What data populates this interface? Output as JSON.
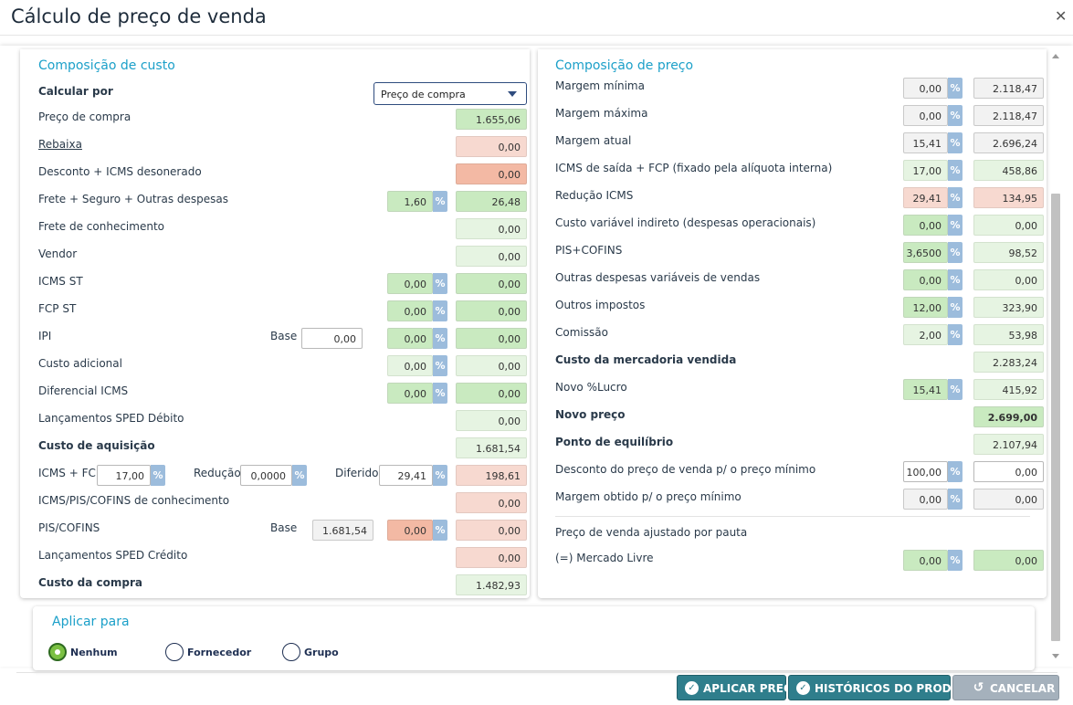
{
  "header": {
    "title": "Cálculo de preço de venda",
    "close_icon": "close-icon"
  },
  "left": {
    "section_title": "Composição de custo",
    "calcular_por_label": "Calcular por",
    "calcular_por_value": "Preço de compra",
    "rows": {
      "preco_compra": {
        "label": "Preço de compra",
        "value": "1.655,06"
      },
      "rebaixa": {
        "label": "Rebaixa",
        "value": "0,00"
      },
      "desconto_icms": {
        "label": "Desconto + ICMS desonerado",
        "value": "0,00"
      },
      "frete": {
        "label": "Frete + Seguro + Outras despesas",
        "pct": "1,60",
        "value": "26,48"
      },
      "frete_conhecimento": {
        "label": "Frete de conhecimento",
        "value": "0,00"
      },
      "vendor": {
        "label": "Vendor",
        "value": "0,00"
      },
      "icms_st": {
        "label": "ICMS ST",
        "pct": "0,00",
        "value": "0,00"
      },
      "fcp_st": {
        "label": "FCP ST",
        "pct": "0,00",
        "value": "0,00"
      },
      "ipi": {
        "label": "IPI",
        "base_label": "Base",
        "base": "0,00",
        "pct": "0,00",
        "value": "0,00"
      },
      "custo_adicional": {
        "label": "Custo adicional",
        "pct": "0,00",
        "value": "0,00"
      },
      "diferencial_icms": {
        "label": "Diferencial ICMS",
        "pct": "0,00",
        "value": "0,00"
      },
      "sped_debito": {
        "label": "Lançamentos SPED Débito",
        "value": "0,00"
      },
      "custo_aquisicao": {
        "label": "Custo de aquisição",
        "value": "1.681,54"
      },
      "icms_fcp": {
        "label": "ICMS + FCP",
        "pct": "17,00",
        "reducao_label": "Redução",
        "reducao": "0,0000",
        "diferido_label": "Diferido",
        "diferido": "29,41",
        "value": "198,61"
      },
      "icms_pis_cofins_conh": {
        "label": "ICMS/PIS/COFINS de conhecimento",
        "value": "0,00"
      },
      "pis_cofins": {
        "label": "PIS/COFINS",
        "base_label": "Base",
        "base": "1.681,54",
        "pct": "0,00",
        "value": "0,00"
      },
      "sped_credito": {
        "label": "Lançamentos SPED Crédito",
        "value": "0,00"
      },
      "custo_compra": {
        "label": "Custo da compra",
        "value": "1.482,93"
      }
    }
  },
  "right": {
    "section_title": "Composição de preço",
    "rows": {
      "margem_minima": {
        "label": "Margem mínima",
        "pct": "0,00",
        "value": "2.118,47"
      },
      "margem_maxima": {
        "label": "Margem máxima",
        "pct": "0,00",
        "value": "2.118,47"
      },
      "margem_atual": {
        "label": "Margem atual",
        "pct": "15,41",
        "value": "2.696,24"
      },
      "icms_saida": {
        "label": "ICMS de saída + FCP (fixado pela alíquota interna)",
        "pct": "17,00",
        "value": "458,86"
      },
      "reducao_icms": {
        "label": "Redução ICMS",
        "pct": "29,41",
        "value": "134,95"
      },
      "custo_variavel": {
        "label": "Custo variável indireto (despesas operacionais)",
        "pct": "0,00",
        "value": "0,00"
      },
      "pis_cofins": {
        "label": "PIS+COFINS",
        "pct": "3,6500",
        "value": "98,52"
      },
      "outras_despesas": {
        "label": "Outras despesas variáveis de vendas",
        "pct": "0,00",
        "value": "0,00"
      },
      "outros_impostos": {
        "label": "Outros impostos",
        "pct": "12,00",
        "value": "323,90"
      },
      "comissao": {
        "label": "Comissão",
        "pct": "2,00",
        "value": "53,98"
      },
      "custo_mercadoria": {
        "label": "Custo da mercadoria vendida",
        "value": "2.283,24"
      },
      "novo_lucro": {
        "label": "Novo %Lucro",
        "pct": "15,41",
        "value": "415,92"
      },
      "novo_preco": {
        "label": "Novo preço",
        "value": "2.699,00"
      },
      "ponto_equilibrio": {
        "label": "Ponto de equilíbrio",
        "value": "2.107,94"
      },
      "desconto_preco": {
        "label": "Desconto do preço de venda p/ o preço mínimo",
        "pct": "100,00",
        "value": "0,00"
      },
      "margem_obtido": {
        "label": "Margem obtido p/ o preço mínimo",
        "pct": "0,00",
        "value": "0,00"
      },
      "preco_pauta": {
        "label": "Preço de venda ajustado por pauta"
      },
      "mercado_livre": {
        "label": "(=) Mercado Livre",
        "pct": "0,00",
        "value": "0,00"
      }
    },
    "pct_symbol": "%"
  },
  "apply": {
    "title": "Aplicar para",
    "options": [
      "Nenhum",
      "Fornecedor",
      "Grupo"
    ],
    "selected": "Nenhum"
  },
  "buttons": {
    "aplicar": "APLICAR PREÇO",
    "historicos": "HISTÓRICOS DO PRODUTO",
    "cancelar": "CANCELAR"
  },
  "colors": {
    "accent": "#1ca0c9",
    "button": "#2f7e8c",
    "green_field": "#c9eac0",
    "pink_field": "#f7d9d0",
    "pct_button": "#9cbcdc"
  }
}
